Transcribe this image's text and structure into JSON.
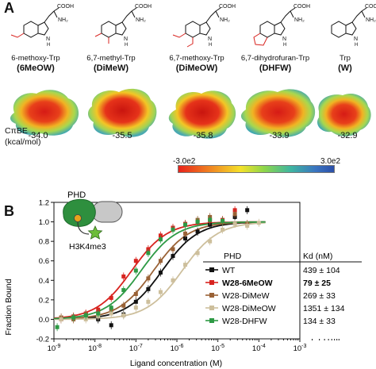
{
  "panel_a": {
    "letter": "A",
    "molecules": [
      {
        "name": "6-methoxy-Trp",
        "abbr": "(6MeOW)",
        "energy": "-34.0"
      },
      {
        "name": "6,7-methyl-Trp",
        "abbr": "(DiMeW)",
        "energy": "-35.5"
      },
      {
        "name": "6,7-methoxy-Trp",
        "abbr": "(DiMeOW)",
        "energy": "-35.8"
      },
      {
        "name": "6,7-dihydrofuran-Trp",
        "abbr": "(DHFW)",
        "energy": "-33.9"
      },
      {
        "name": "Trp",
        "abbr": "(W)",
        "energy": "-32.9"
      }
    ],
    "chem_labels": {
      "acid": "COOH",
      "amine": "NH₂",
      "nh": "N",
      "h": "H"
    },
    "cpbe_label": "CπBE",
    "cpbe_unit": "(kcal/mol)",
    "scale_min": "-3.0e2",
    "scale_max": "3.0e2",
    "colors": {
      "low": "#e8231b",
      "mid": "#8ed64a",
      "high": "#2b4fa8"
    }
  },
  "panel_b": {
    "letter": "B",
    "diagram": {
      "protein_label": "PHD",
      "mark_label": "H3K4me3"
    },
    "legend_header": {
      "col1": "PHD",
      "col2": "Kd (nM)"
    },
    "chart_data": {
      "type": "scatter",
      "xlabel": "Ligand concentration (M)",
      "ylabel": "Fraction Bound",
      "xscale": "log",
      "xlim": [
        1e-09,
        0.001
      ],
      "ylim": [
        -0.2,
        1.2
      ],
      "xticks": [
        "10-9",
        "10-8",
        "10-7",
        "10-6",
        "10-5",
        "10-4",
        "10-3"
      ],
      "yticks": [
        "-0.2",
        "0.0",
        "0.2",
        "0.4",
        "0.6",
        "0.8",
        "1.0",
        "1.2"
      ],
      "legend_placement": "bottom-right",
      "series": [
        {
          "name": "WT",
          "kd": "439 ± 104",
          "bold": false,
          "color": "#111111",
          "kd_nM": 439,
          "x": [
            1.5e-09,
            3e-09,
            6e-09,
            1.2e-08,
            2.5e-08,
            5e-08,
            1e-07,
            2e-07,
            4e-07,
            8e-07,
            1.6e-06,
            3.2e-06,
            6.4e-06,
            1.3e-05,
            2.6e-05,
            5.2e-05
          ],
          "y": [
            0.0,
            0.02,
            0.05,
            0.0,
            -0.06,
            0.05,
            0.18,
            0.31,
            0.48,
            0.65,
            0.83,
            0.9,
            0.97,
            1.0,
            1.05,
            1.12
          ]
        },
        {
          "name": "W28-6MeOW",
          "kd": "79 ± 25",
          "bold": true,
          "color": "#d8231f",
          "kd_nM": 79,
          "x": [
            1.5e-09,
            3e-09,
            6e-09,
            1.2e-08,
            2.5e-08,
            5e-08,
            1e-07,
            2e-07,
            4e-07,
            8e-07,
            1.6e-06,
            3.2e-06,
            6.4e-06,
            1.3e-05,
            2.6e-05
          ],
          "y": [
            0.0,
            0.03,
            0.06,
            0.1,
            0.22,
            0.44,
            0.6,
            0.72,
            0.86,
            0.94,
            0.98,
            1.0,
            1.01,
            1.02,
            1.12
          ]
        },
        {
          "name": "W28-DiMeW",
          "kd": "269 ± 33",
          "bold": false,
          "color": "#9a6236",
          "kd_nM": 269,
          "x": [
            1.5e-09,
            3e-09,
            6e-09,
            1.2e-08,
            2.5e-08,
            5e-08,
            1e-07,
            2e-07,
            4e-07,
            8e-07,
            1.6e-06,
            3.2e-06,
            6.4e-06,
            1.3e-05,
            2.6e-05,
            5.2e-05
          ],
          "y": [
            0.02,
            0.0,
            0.05,
            0.06,
            0.1,
            0.14,
            0.26,
            0.42,
            0.6,
            0.72,
            0.88,
            1.02,
            1.05,
            1.0,
            1.08,
            0.98
          ]
        },
        {
          "name": "W28-DiMeOW",
          "kd": "1351 ± 134",
          "bold": false,
          "color": "#cdbf9c",
          "kd_nM": 1351,
          "x": [
            1.5e-09,
            3e-09,
            6e-09,
            1.2e-08,
            2.5e-08,
            5e-08,
            1e-07,
            2e-07,
            4e-07,
            8e-07,
            1.6e-06,
            3.2e-06,
            6.4e-06,
            1.3e-05,
            2.6e-05,
            5.2e-05,
            0.0001
          ],
          "y": [
            0.0,
            0.02,
            0.0,
            0.03,
            0.06,
            0.04,
            0.12,
            0.18,
            0.28,
            0.4,
            0.56,
            0.68,
            0.8,
            0.92,
            0.98,
            0.96,
            0.99
          ]
        },
        {
          "name": "W28-DHFW",
          "kd": "134 ± 33",
          "bold": false,
          "color": "#2e9a45",
          "kd_nM": 134,
          "x": [
            1.2e-09,
            3e-09,
            6e-09,
            1.2e-08,
            2.5e-08,
            5e-08,
            1e-07,
            2e-07,
            4e-07,
            8e-07,
            1.6e-06,
            3.2e-06,
            6.4e-06,
            1.3e-05
          ],
          "y": [
            -0.08,
            0.02,
            0.04,
            0.06,
            0.12,
            0.3,
            0.5,
            0.68,
            0.82,
            0.92,
            0.97,
            1.0,
            1.02,
            1.01
          ]
        }
      ]
    }
  }
}
